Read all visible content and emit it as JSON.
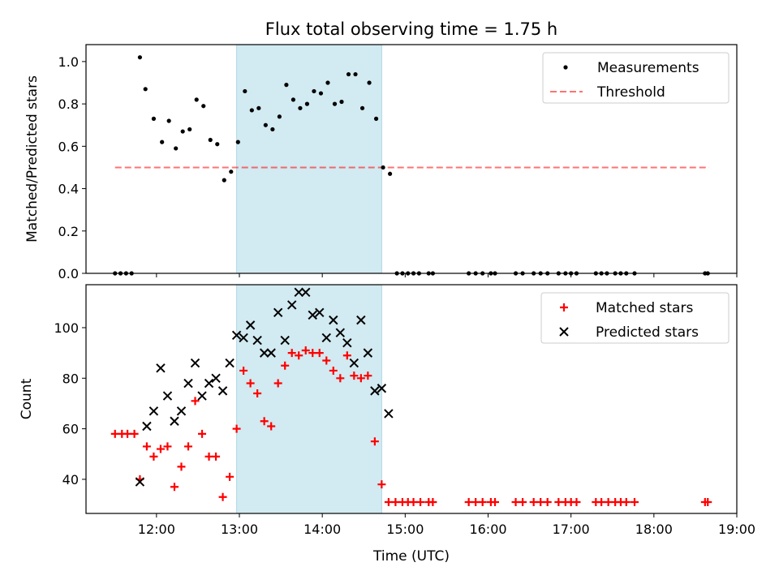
{
  "title": "Flux total observing time = 1.75 h",
  "colors": {
    "shade": "#add8e6",
    "threshold": "#ff0000",
    "matched": "#ff0000",
    "predicted": "#000000",
    "measure": "#000000"
  },
  "chart_data": [
    {
      "type": "scatter",
      "ylabel": "Matched/Predicted stars",
      "xlim": [
        "11:09",
        "19:00"
      ],
      "ylim": [
        0,
        1.08
      ],
      "yticks": [
        "0.0",
        "0.2",
        "0.4",
        "0.6",
        "0.8",
        "1.0"
      ],
      "shaded_x": [
        "12:58",
        "14:43"
      ],
      "legend": {
        "position": "top-right",
        "entries": [
          "Measurements",
          "Threshold"
        ]
      },
      "threshold": {
        "name": "Threshold",
        "value": 0.5,
        "x": [
          "11:30",
          "18:40"
        ]
      },
      "series": [
        {
          "name": "Measurements",
          "points": [
            [
              "11:30",
              0
            ],
            [
              "11:34",
              0
            ],
            [
              "11:38",
              0
            ],
            [
              "11:42",
              0
            ],
            [
              "11:48",
              1.02
            ],
            [
              "11:52",
              0.87
            ],
            [
              "11:58",
              0.73
            ],
            [
              "12:04",
              0.62
            ],
            [
              "12:09",
              0.72
            ],
            [
              "12:14",
              0.59
            ],
            [
              "12:19",
              0.67
            ],
            [
              "12:24",
              0.68
            ],
            [
              "12:29",
              0.82
            ],
            [
              "12:34",
              0.79
            ],
            [
              "12:39",
              0.63
            ],
            [
              "12:44",
              0.61
            ],
            [
              "12:49",
              0.44
            ],
            [
              "12:54",
              0.48
            ],
            [
              "12:59",
              0.62
            ],
            [
              "13:04",
              0.86
            ],
            [
              "13:09",
              0.77
            ],
            [
              "13:14",
              0.78
            ],
            [
              "13:19",
              0.7
            ],
            [
              "13:24",
              0.68
            ],
            [
              "13:29",
              0.74
            ],
            [
              "13:34",
              0.89
            ],
            [
              "13:39",
              0.82
            ],
            [
              "13:44",
              0.78
            ],
            [
              "13:49",
              0.8
            ],
            [
              "13:54",
              0.86
            ],
            [
              "13:59",
              0.85
            ],
            [
              "14:04",
              0.9
            ],
            [
              "14:09",
              0.8
            ],
            [
              "14:14",
              0.81
            ],
            [
              "14:19",
              0.94
            ],
            [
              "14:24",
              0.94
            ],
            [
              "14:29",
              0.78
            ],
            [
              "14:34",
              0.9
            ],
            [
              "14:39",
              0.73
            ],
            [
              "14:44",
              0.5
            ],
            [
              "14:49",
              0.47
            ],
            [
              "14:54",
              0
            ],
            [
              "14:58",
              0
            ],
            [
              "15:02",
              0
            ],
            [
              "15:06",
              0
            ],
            [
              "15:10",
              0
            ],
            [
              "15:17",
              0
            ],
            [
              "15:20",
              0
            ],
            [
              "15:46",
              0
            ],
            [
              "15:51",
              0
            ],
            [
              "15:56",
              0
            ],
            [
              "16:02",
              0
            ],
            [
              "16:05",
              0
            ],
            [
              "16:20",
              0
            ],
            [
              "16:25",
              0
            ],
            [
              "16:33",
              0
            ],
            [
              "16:38",
              0
            ],
            [
              "16:43",
              0
            ],
            [
              "16:51",
              0
            ],
            [
              "16:56",
              0
            ],
            [
              "17:00",
              0
            ],
            [
              "17:04",
              0
            ],
            [
              "17:18",
              0
            ],
            [
              "17:22",
              0
            ],
            [
              "17:26",
              0
            ],
            [
              "17:32",
              0
            ],
            [
              "17:36",
              0
            ],
            [
              "17:40",
              0
            ],
            [
              "17:46",
              0
            ],
            [
              "18:37",
              0
            ],
            [
              "18:39",
              0
            ]
          ]
        }
      ]
    },
    {
      "type": "scatter",
      "xlabel": "Time (UTC)",
      "ylabel": "Count",
      "xlim": [
        "11:09",
        "19:00"
      ],
      "ylim": [
        26.5,
        117
      ],
      "yticks": [
        "40",
        "60",
        "80",
        "100"
      ],
      "xticks": [
        "12:00",
        "13:00",
        "14:00",
        "15:00",
        "16:00",
        "17:00",
        "18:00",
        "19:00"
      ],
      "shaded_x": [
        "12:58",
        "14:43"
      ],
      "legend": {
        "position": "top-right",
        "entries": [
          "Matched stars",
          "Predicted stars"
        ]
      },
      "series": [
        {
          "name": "Matched stars",
          "marker": "plus",
          "points": [
            [
              "11:30",
              58
            ],
            [
              "11:35",
              58
            ],
            [
              "11:39",
              58
            ],
            [
              "11:44",
              58
            ],
            [
              "11:48",
              40
            ],
            [
              "11:53",
              53
            ],
            [
              "11:58",
              49
            ],
            [
              "12:03",
              52
            ],
            [
              "12:08",
              53
            ],
            [
              "12:13",
              37
            ],
            [
              "12:18",
              45
            ],
            [
              "12:23",
              53
            ],
            [
              "12:28",
              71
            ],
            [
              "12:33",
              58
            ],
            [
              "12:38",
              49
            ],
            [
              "12:43",
              49
            ],
            [
              "12:48",
              33
            ],
            [
              "12:53",
              41
            ],
            [
              "12:58",
              60
            ],
            [
              "13:03",
              83
            ],
            [
              "13:08",
              78
            ],
            [
              "13:13",
              74
            ],
            [
              "13:18",
              63
            ],
            [
              "13:23",
              61
            ],
            [
              "13:28",
              78
            ],
            [
              "13:33",
              85
            ],
            [
              "13:38",
              90
            ],
            [
              "13:43",
              89
            ],
            [
              "13:48",
              91
            ],
            [
              "13:53",
              90
            ],
            [
              "13:58",
              90
            ],
            [
              "14:03",
              87
            ],
            [
              "14:08",
              83
            ],
            [
              "14:13",
              80
            ],
            [
              "14:18",
              89
            ],
            [
              "14:23",
              81
            ],
            [
              "14:28",
              80
            ],
            [
              "14:33",
              81
            ],
            [
              "14:38",
              55
            ],
            [
              "14:43",
              38
            ],
            [
              "14:48",
              31
            ],
            [
              "14:53",
              31
            ],
            [
              "14:58",
              31
            ],
            [
              "15:02",
              31
            ],
            [
              "15:06",
              31
            ],
            [
              "15:11",
              31
            ],
            [
              "15:17",
              31
            ],
            [
              "15:20",
              31
            ],
            [
              "15:46",
              31
            ],
            [
              "15:51",
              31
            ],
            [
              "15:56",
              31
            ],
            [
              "16:02",
              31
            ],
            [
              "16:05",
              31
            ],
            [
              "16:20",
              31
            ],
            [
              "16:25",
              31
            ],
            [
              "16:33",
              31
            ],
            [
              "16:38",
              31
            ],
            [
              "16:43",
              31
            ],
            [
              "16:51",
              31
            ],
            [
              "16:56",
              31
            ],
            [
              "17:00",
              31
            ],
            [
              "17:04",
              31
            ],
            [
              "17:18",
              31
            ],
            [
              "17:22",
              31
            ],
            [
              "17:27",
              31
            ],
            [
              "17:32",
              31
            ],
            [
              "17:36",
              31
            ],
            [
              "17:40",
              31
            ],
            [
              "17:46",
              31
            ],
            [
              "18:37",
              31
            ],
            [
              "18:39",
              31
            ]
          ]
        },
        {
          "name": "Predicted stars",
          "marker": "x",
          "points": [
            [
              "11:48",
              39
            ],
            [
              "11:53",
              61
            ],
            [
              "11:58",
              67
            ],
            [
              "12:03",
              84
            ],
            [
              "12:08",
              73
            ],
            [
              "12:13",
              63
            ],
            [
              "12:18",
              67
            ],
            [
              "12:23",
              78
            ],
            [
              "12:28",
              86
            ],
            [
              "12:33",
              73
            ],
            [
              "12:38",
              78
            ],
            [
              "12:43",
              80
            ],
            [
              "12:48",
              75
            ],
            [
              "12:53",
              86
            ],
            [
              "12:58",
              97
            ],
            [
              "13:03",
              96
            ],
            [
              "13:08",
              101
            ],
            [
              "13:13",
              95
            ],
            [
              "13:18",
              90
            ],
            [
              "13:23",
              90
            ],
            [
              "13:28",
              106
            ],
            [
              "13:33",
              95
            ],
            [
              "13:38",
              109
            ],
            [
              "13:43",
              114
            ],
            [
              "13:48",
              114
            ],
            [
              "13:53",
              105
            ],
            [
              "13:58",
              106
            ],
            [
              "14:03",
              96
            ],
            [
              "14:08",
              103
            ],
            [
              "14:13",
              98
            ],
            [
              "14:18",
              94
            ],
            [
              "14:23",
              86
            ],
            [
              "14:28",
              103
            ],
            [
              "14:33",
              90
            ],
            [
              "14:38",
              75
            ],
            [
              "14:43",
              76
            ],
            [
              "14:48",
              66
            ]
          ]
        }
      ]
    }
  ]
}
